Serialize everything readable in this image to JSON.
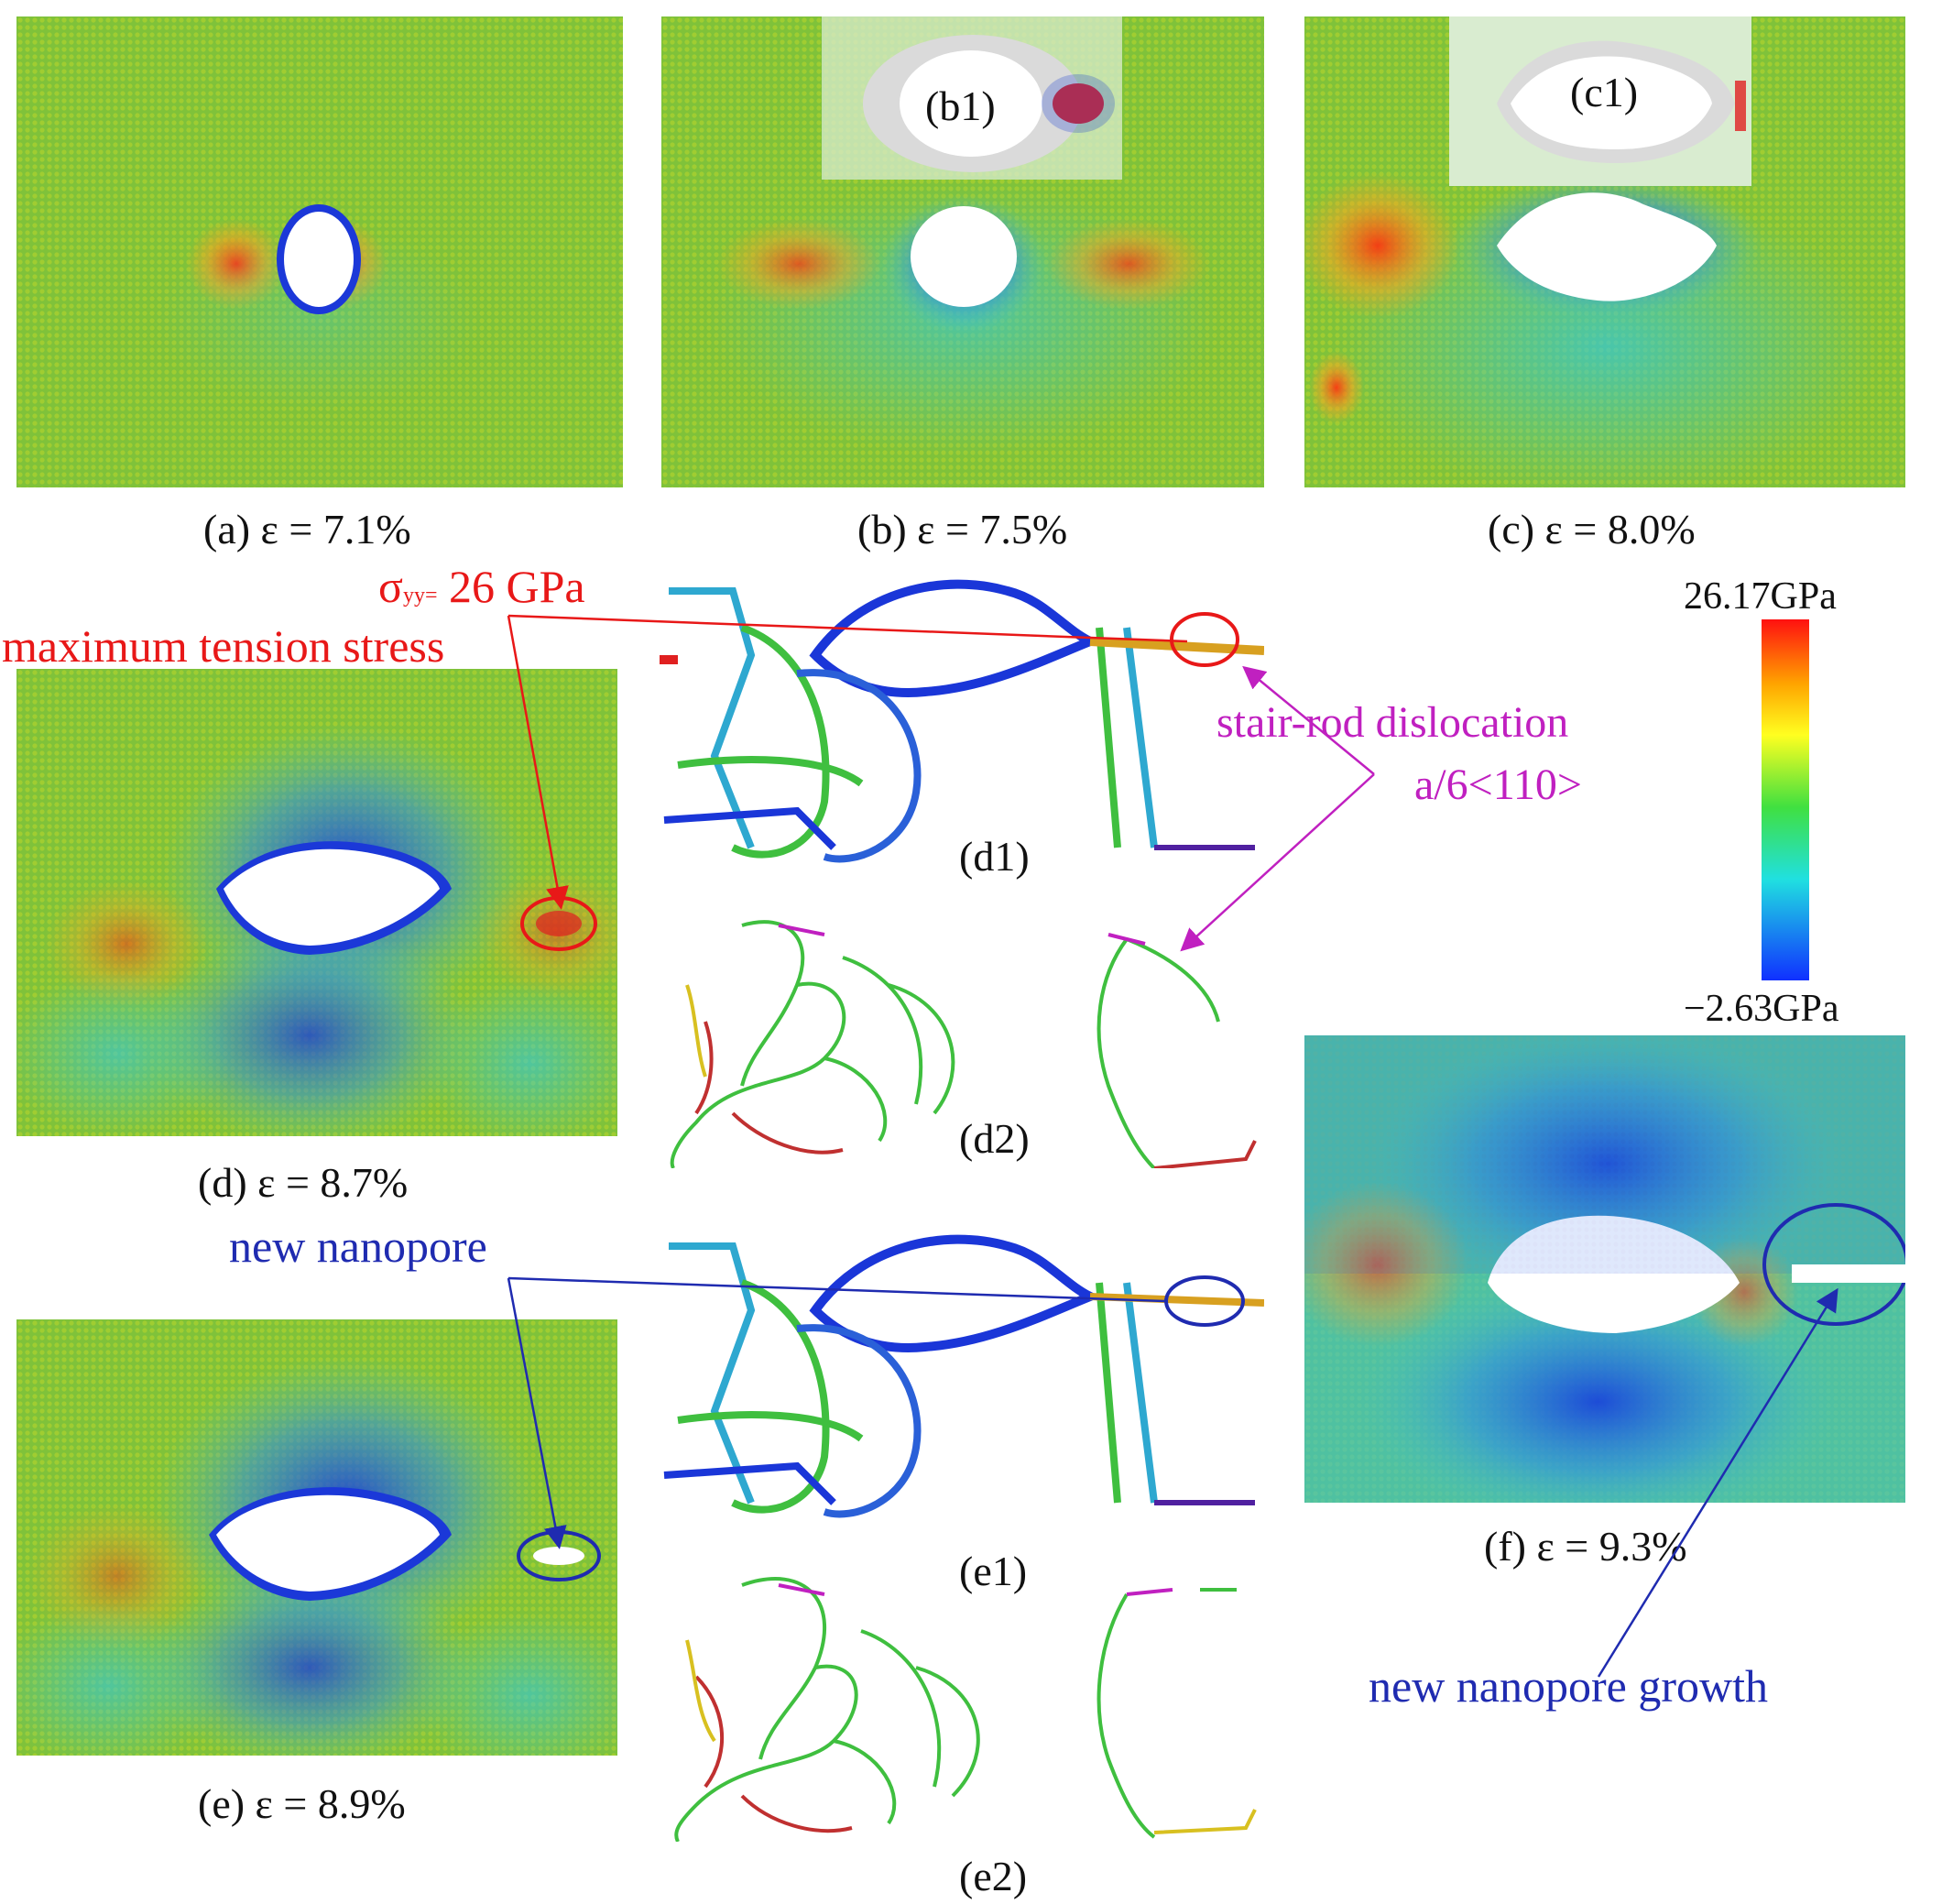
{
  "captions": {
    "a": "(a) ε = 7.1%",
    "b": "(b) ε = 7.5%",
    "c": "(c) ε = 8.0%",
    "d": "(d) ε = 8.7%",
    "e": "(e) ε = 8.9%",
    "f": "(f) ε = 9.3%"
  },
  "insets": {
    "b1": "(b1)",
    "c1": "(c1)",
    "d1": "(d1)",
    "d2": "(d2)",
    "e1": "(e1)",
    "e2": "(e2)"
  },
  "annotations": {
    "sigma_symbol": "σ",
    "sigma_sub": "yy=",
    "sigma_value": " 26 GPa",
    "max_tension": "maximum tension stress",
    "stair_rod_1": "stair-rod dislocation",
    "stair_rod_2": "a/6<110>",
    "new_nanopore": "new nanopore",
    "nanopore_growth": "new nanopore growth"
  },
  "colorbar": {
    "max_label": "26.17GPa",
    "min_label": "−2.63GPa",
    "colors": [
      "#ff1010",
      "#ffa500",
      "#ffff20",
      "#40e040",
      "#20e0e0",
      "#1030ff"
    ]
  },
  "colors": {
    "annotation_red": "#e81818",
    "annotation_magenta": "#c020c0",
    "annotation_blue": "#1f2bb0",
    "bulk_green": "#6cc23a"
  }
}
